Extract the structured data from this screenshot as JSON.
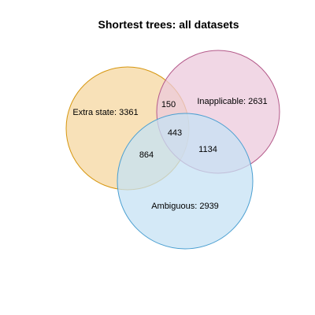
{
  "title": "Shortest trees: all datasets",
  "sets": [
    {
      "key": "extra",
      "name": "Extra state",
      "label": "Extra state: 3361",
      "value": 3361,
      "fill": "#f5d7a0",
      "stroke": "#d6960f"
    },
    {
      "key": "inapplicable",
      "name": "Inapplicable",
      "label": "Inapplicable: 2631",
      "value": 2631,
      "fill": "#ecc9dc",
      "stroke": "#b45a8a"
    },
    {
      "key": "ambiguous",
      "name": "Ambiguous",
      "label": "Ambiguous: 2939",
      "value": 2939,
      "fill": "#c6e2f4",
      "stroke": "#4a9fd1"
    }
  ],
  "overlaps": {
    "extra_inapplicable": "150",
    "all_three": "443",
    "extra_ambiguous": "864",
    "inapplicable_ambiguous": "1134"
  }
}
